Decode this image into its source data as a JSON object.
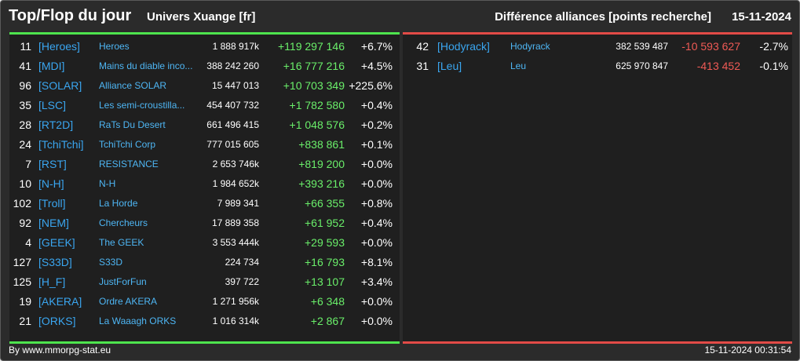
{
  "header": {
    "title": "Top/Flop du jour",
    "subtitle": "Univers Xuange [fr]",
    "right_title": "Différence alliances [points recherche]",
    "date": "15-11-2024"
  },
  "top_rows": [
    {
      "rank": "11",
      "tag": "[Heroes]",
      "name": "Heroes",
      "points": "1 888 917k",
      "diff": "+119 297 146",
      "pct": "+6.7%"
    },
    {
      "rank": "41",
      "tag": "[MDI]",
      "name": "Mains du diable inco...",
      "points": "388 242 260",
      "diff": "+16 777 216",
      "pct": "+4.5%"
    },
    {
      "rank": "96",
      "tag": "[SOLAR]",
      "name": "Alliance SOLAR",
      "points": "15 447 013",
      "diff": "+10 703 349",
      "pct": "+225.6%"
    },
    {
      "rank": "35",
      "tag": "[LSC]",
      "name": "Les semi-croustilla...",
      "points": "454 407 732",
      "diff": "+1 782 580",
      "pct": "+0.4%"
    },
    {
      "rank": "28",
      "tag": "[RT2D]",
      "name": "RaTs Du Desert",
      "points": "661 496 415",
      "diff": "+1 048 576",
      "pct": "+0.2%"
    },
    {
      "rank": "24",
      "tag": "[TchiTchi]",
      "name": "TchiTchi Corp",
      "points": "777 015 605",
      "diff": "+838 861",
      "pct": "+0.1%"
    },
    {
      "rank": "7",
      "tag": "[RST]",
      "name": "RESISTANCE",
      "points": "2 653 746k",
      "diff": "+819 200",
      "pct": "+0.0%"
    },
    {
      "rank": "10",
      "tag": "[N-H]",
      "name": "N-H",
      "points": "1 984 652k",
      "diff": "+393 216",
      "pct": "+0.0%"
    },
    {
      "rank": "102",
      "tag": "[Troll]",
      "name": "La Horde",
      "points": "7 989 341",
      "diff": "+66 355",
      "pct": "+0.8%"
    },
    {
      "rank": "92",
      "tag": "[NEM]",
      "name": "Chercheurs",
      "points": "17 889 358",
      "diff": "+61 952",
      "pct": "+0.4%"
    },
    {
      "rank": "4",
      "tag": "[GEEK]",
      "name": "The GEEK",
      "points": "3 553 444k",
      "diff": "+29 593",
      "pct": "+0.0%"
    },
    {
      "rank": "127",
      "tag": "[S33D]",
      "name": "S33D",
      "points": "224 734",
      "diff": "+16 793",
      "pct": "+8.1%"
    },
    {
      "rank": "125",
      "tag": "[H_F]",
      "name": "JustForFun",
      "points": "397 722",
      "diff": "+13 107",
      "pct": "+3.4%"
    },
    {
      "rank": "19",
      "tag": "[AKERA]",
      "name": "Ordre AKERA",
      "points": "1 271 956k",
      "diff": "+6 348",
      "pct": "+0.0%"
    },
    {
      "rank": "21",
      "tag": "[ORKS]",
      "name": "La Waaagh ORKS",
      "points": "1 016 314k",
      "diff": "+2 867",
      "pct": "+0.0%"
    }
  ],
  "flop_rows": [
    {
      "rank": "42",
      "tag": "[Hodyrack]",
      "name": "Hodyrack",
      "points": "382 539 487",
      "diff": "-10 593 627",
      "pct": "-2.7%"
    },
    {
      "rank": "31",
      "tag": "[Leu]",
      "name": "Leu",
      "points": "625 970 847",
      "diff": "-413 452",
      "pct": "-0.1%"
    }
  ],
  "footer": {
    "credit": "By www.mmorpg-stat.eu",
    "timestamp": "15-11-2024 00:31:54"
  },
  "colors": {
    "top_accent": "#4ee44e",
    "flop_accent": "#e24b47",
    "positive_text": "#6aef6a",
    "negative_text": "#ef5a55",
    "tag_blue": "#3aa6f0"
  }
}
